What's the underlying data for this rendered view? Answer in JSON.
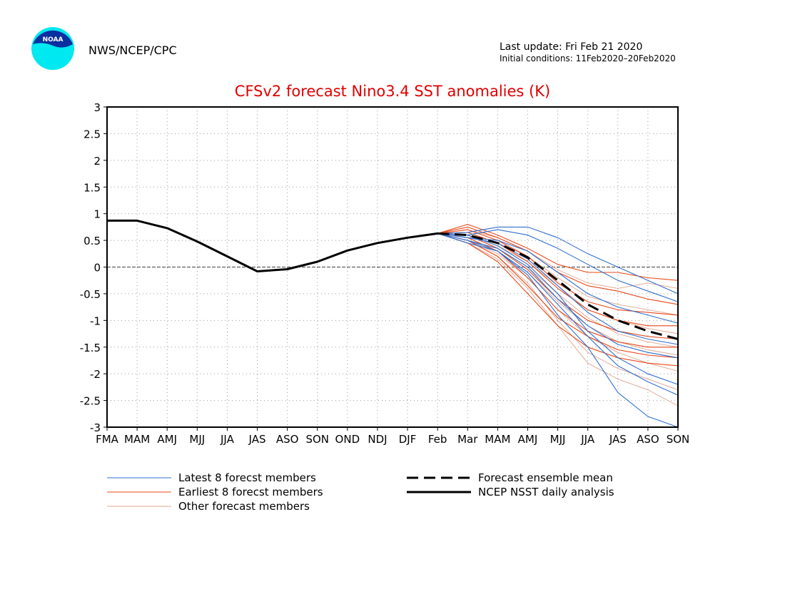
{
  "logo_text": "NOAA",
  "header": {
    "agency": "NWS/NCEP/CPC",
    "last_update": "Last update: Fri Feb 21 2020",
    "initial_conditions": "Initial conditions: 11Feb2020–20Feb2020"
  },
  "chart_data": {
    "type": "line",
    "title": "CFSv2 forecast Nino3.4 SST anomalies (K)",
    "categories": [
      "FMA",
      "MAM",
      "AMJ",
      "MJJ",
      "JJA",
      "JAS",
      "ASO",
      "SON",
      "OND",
      "NDJ",
      "DJF",
      "Feb",
      "Mar",
      "MAM",
      "AMJ",
      "MJJ",
      "JJA",
      "JAS",
      "ASO",
      "SON"
    ],
    "ylim": [
      -3,
      3
    ],
    "yticks": [
      -3,
      -2.5,
      -2,
      -1.5,
      -1,
      -0.5,
      0,
      0.5,
      1,
      1.5,
      2,
      2.5,
      3
    ],
    "grid": true,
    "series": [
      {
        "name": "Latest 8 forecst members",
        "color": "#2f6fd0",
        "members": [
          [
            null,
            null,
            null,
            null,
            null,
            null,
            null,
            null,
            null,
            null,
            null,
            0.63,
            0.65,
            0.75,
            0.75,
            0.55,
            0.25,
            0.0,
            -0.25,
            -0.5
          ],
          [
            null,
            null,
            null,
            null,
            null,
            null,
            null,
            null,
            null,
            null,
            null,
            0.63,
            0.6,
            0.7,
            0.6,
            0.35,
            0.05,
            -0.25,
            -0.45,
            -0.65
          ],
          [
            null,
            null,
            null,
            null,
            null,
            null,
            null,
            null,
            null,
            null,
            null,
            0.63,
            0.55,
            0.5,
            0.3,
            -0.1,
            -0.5,
            -0.75,
            -0.9,
            -1.05
          ],
          [
            null,
            null,
            null,
            null,
            null,
            null,
            null,
            null,
            null,
            null,
            null,
            0.63,
            0.55,
            0.45,
            0.15,
            -0.35,
            -0.85,
            -1.2,
            -1.35,
            -1.45
          ],
          [
            null,
            null,
            null,
            null,
            null,
            null,
            null,
            null,
            null,
            null,
            null,
            0.63,
            0.5,
            0.35,
            0.0,
            -0.6,
            -1.1,
            -1.45,
            -1.6,
            -1.7
          ],
          [
            null,
            null,
            null,
            null,
            null,
            null,
            null,
            null,
            null,
            null,
            null,
            0.63,
            0.6,
            0.4,
            0.05,
            -0.5,
            -1.2,
            -1.7,
            -2.0,
            -2.2
          ],
          [
            null,
            null,
            null,
            null,
            null,
            null,
            null,
            null,
            null,
            null,
            null,
            0.63,
            0.45,
            0.3,
            -0.1,
            -0.7,
            -1.3,
            -1.85,
            -2.15,
            -2.4
          ],
          [
            null,
            null,
            null,
            null,
            null,
            null,
            null,
            null,
            null,
            null,
            null,
            0.63,
            0.5,
            0.3,
            -0.15,
            -0.9,
            -1.5,
            -2.35,
            -2.8,
            -3.0
          ]
        ]
      },
      {
        "name": "Earliest 8 forecst members",
        "color": "#e8481a",
        "members": [
          [
            null,
            null,
            null,
            null,
            null,
            null,
            null,
            null,
            null,
            null,
            null,
            0.63,
            0.8,
            0.6,
            0.35,
            0.05,
            -0.1,
            -0.1,
            -0.2,
            -0.25
          ],
          [
            null,
            null,
            null,
            null,
            null,
            null,
            null,
            null,
            null,
            null,
            null,
            0.63,
            0.75,
            0.55,
            0.3,
            -0.1,
            -0.35,
            -0.45,
            -0.6,
            -0.7
          ],
          [
            null,
            null,
            null,
            null,
            null,
            null,
            null,
            null,
            null,
            null,
            null,
            0.63,
            0.7,
            0.5,
            0.2,
            -0.3,
            -0.65,
            -0.8,
            -0.85,
            -0.9
          ],
          [
            null,
            null,
            null,
            null,
            null,
            null,
            null,
            null,
            null,
            null,
            null,
            0.63,
            0.65,
            0.45,
            0.1,
            -0.4,
            -0.8,
            -1.0,
            -1.1,
            -1.1
          ],
          [
            null,
            null,
            null,
            null,
            null,
            null,
            null,
            null,
            null,
            null,
            null,
            0.63,
            0.6,
            0.35,
            -0.05,
            -0.6,
            -1.0,
            -1.2,
            -1.3,
            -1.35
          ],
          [
            null,
            null,
            null,
            null,
            null,
            null,
            null,
            null,
            null,
            null,
            null,
            0.63,
            0.55,
            0.3,
            -0.2,
            -0.8,
            -1.2,
            -1.4,
            -1.5,
            -1.5
          ],
          [
            null,
            null,
            null,
            null,
            null,
            null,
            null,
            null,
            null,
            null,
            null,
            0.63,
            0.5,
            0.2,
            -0.35,
            -0.95,
            -1.3,
            -1.55,
            -1.65,
            -1.7
          ],
          [
            null,
            null,
            null,
            null,
            null,
            null,
            null,
            null,
            null,
            null,
            null,
            0.63,
            0.45,
            0.1,
            -0.5,
            -1.1,
            -1.5,
            -1.7,
            -1.8,
            -1.85
          ]
        ]
      },
      {
        "name": "Other forecast members",
        "color": "#e0a48c",
        "members": [
          [
            null,
            null,
            null,
            null,
            null,
            null,
            null,
            null,
            null,
            null,
            null,
            0.63,
            0.7,
            0.55,
            0.3,
            -0.05,
            -0.3,
            -0.4,
            -0.3,
            -0.4
          ],
          [
            null,
            null,
            null,
            null,
            null,
            null,
            null,
            null,
            null,
            null,
            null,
            0.63,
            0.65,
            0.45,
            0.2,
            -0.2,
            -0.55,
            -0.7,
            -0.8,
            -0.9
          ],
          [
            null,
            null,
            null,
            null,
            null,
            null,
            null,
            null,
            null,
            null,
            null,
            0.63,
            0.6,
            0.4,
            0.1,
            -0.35,
            -0.8,
            -1.0,
            -1.15,
            -1.25
          ],
          [
            null,
            null,
            null,
            null,
            null,
            null,
            null,
            null,
            null,
            null,
            null,
            0.63,
            0.6,
            0.35,
            0.0,
            -0.5,
            -0.95,
            -1.25,
            -1.4,
            -1.5
          ],
          [
            null,
            null,
            null,
            null,
            null,
            null,
            null,
            null,
            null,
            null,
            null,
            0.63,
            0.55,
            0.3,
            -0.1,
            -0.65,
            -1.1,
            -1.4,
            -1.55,
            -1.65
          ],
          [
            null,
            null,
            null,
            null,
            null,
            null,
            null,
            null,
            null,
            null,
            null,
            0.63,
            0.5,
            0.25,
            -0.2,
            -0.8,
            -1.3,
            -1.6,
            -1.8,
            -1.95
          ],
          [
            null,
            null,
            null,
            null,
            null,
            null,
            null,
            null,
            null,
            null,
            null,
            0.63,
            0.5,
            0.2,
            -0.3,
            -1.0,
            -1.6,
            -1.9,
            -2.1,
            -2.3
          ],
          [
            null,
            null,
            null,
            null,
            null,
            null,
            null,
            null,
            null,
            null,
            null,
            0.63,
            0.45,
            0.15,
            -0.4,
            -1.1,
            -1.8,
            -2.1,
            -2.3,
            -2.6
          ]
        ]
      },
      {
        "name": "Forecast ensemble mean",
        "color": "#000000",
        "dashed": true,
        "values": [
          null,
          null,
          null,
          null,
          null,
          null,
          null,
          null,
          null,
          null,
          null,
          0.63,
          0.6,
          0.45,
          0.18,
          -0.25,
          -0.7,
          -1.0,
          -1.2,
          -1.35
        ]
      },
      {
        "name": "NCEP NSST daily analysis",
        "color": "#000000",
        "values": [
          0.87,
          0.87,
          0.73,
          0.48,
          0.2,
          -0.08,
          -0.04,
          0.1,
          0.31,
          0.45,
          0.55,
          0.63,
          null,
          null,
          null,
          null,
          null,
          null,
          null,
          null
        ]
      }
    ]
  }
}
